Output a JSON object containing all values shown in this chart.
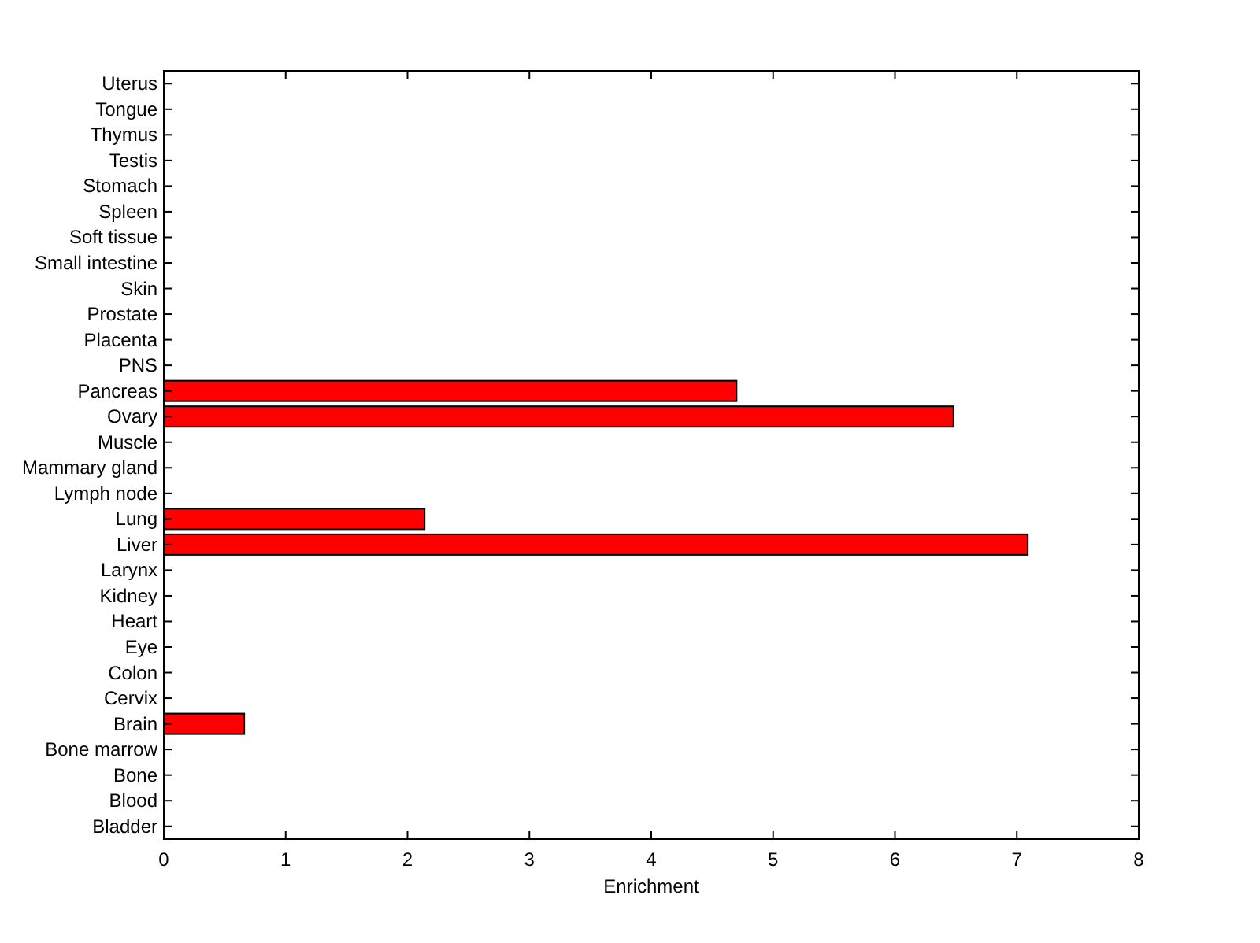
{
  "chart_data": {
    "type": "bar",
    "orientation": "horizontal",
    "xlabel": "Enrichment",
    "categories": [
      "Uterus",
      "Tongue",
      "Thymus",
      "Testis",
      "Stomach",
      "Spleen",
      "Soft tissue",
      "Small intestine",
      "Skin",
      "Prostate",
      "Placenta",
      "PNS",
      "Pancreas",
      "Ovary",
      "Muscle",
      "Mammary gland",
      "Lymph node",
      "Lung",
      "Liver",
      "Larynx",
      "Kidney",
      "Heart",
      "Eye",
      "Colon",
      "Cervix",
      "Brain",
      "Bone marrow",
      "Bone",
      "Blood",
      "Bladder"
    ],
    "values": [
      0,
      0,
      0,
      0,
      0,
      0,
      0,
      0,
      0,
      0,
      0,
      0,
      4.7,
      6.48,
      0,
      0,
      0,
      2.14,
      7.09,
      0,
      0,
      0,
      0,
      0,
      0,
      0.66,
      0,
      0,
      0,
      0
    ],
    "color": "#ff0000",
    "xlim": [
      0,
      8
    ],
    "xticks": [
      0,
      1,
      2,
      3,
      4,
      5,
      6,
      7,
      8
    ],
    "grid": false
  }
}
